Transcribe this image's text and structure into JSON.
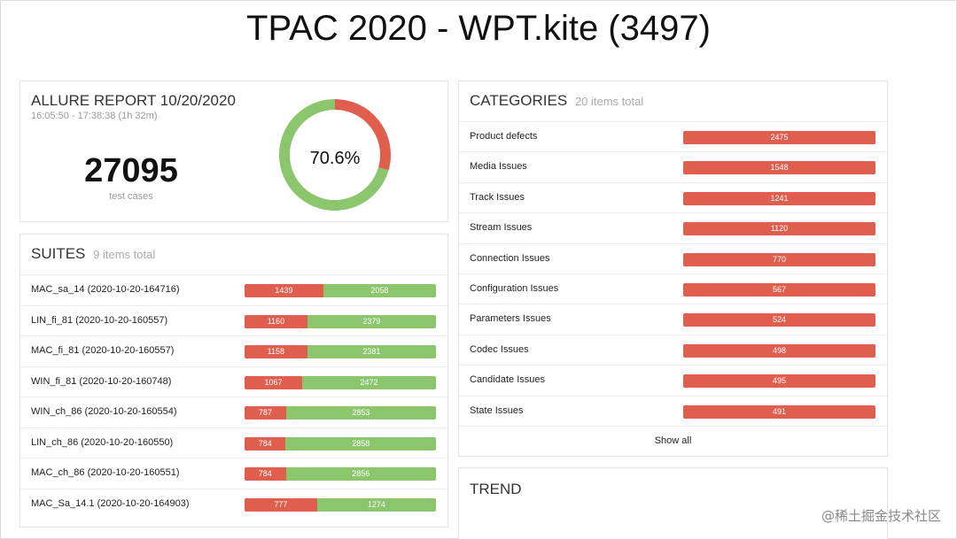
{
  "slide": {
    "title": "TPAC 2020 - WPT.kite (3497)"
  },
  "report": {
    "title": "ALLURE REPORT 10/20/2020",
    "time_range": "16:05:50 - 17:38:38 (1h 32m)",
    "total": "27095",
    "total_label": "test cases",
    "pass_rate_label": "70.6%",
    "pass_rate": 0.706,
    "colors": {
      "pass": "#8bc56c",
      "fail": "#e05e4d"
    }
  },
  "suites": {
    "title": "SUITES",
    "count_label": "9 items total",
    "items": [
      {
        "name": "MAC_sa_14 (2020-10-20-164716)",
        "failed": 1439,
        "passed": 2058,
        "failed_label": "1439",
        "passed_label": "2058"
      },
      {
        "name": "LIN_fi_81 (2020-10-20-160557)",
        "failed": 1160,
        "passed": 2379,
        "failed_label": "1160",
        "passed_label": "2379"
      },
      {
        "name": "MAC_fi_81 (2020-10-20-160557)",
        "failed": 1158,
        "passed": 2381,
        "failed_label": "1158",
        "passed_label": "2381"
      },
      {
        "name": "WIN_fi_81 (2020-10-20-160748)",
        "failed": 1067,
        "passed": 2472,
        "failed_label": "1067",
        "passed_label": "2472"
      },
      {
        "name": "WIN_ch_86 (2020-10-20-160554)",
        "failed": 787,
        "passed": 2853,
        "failed_label": "787",
        "passed_label": "2853"
      },
      {
        "name": "LIN_ch_86 (2020-10-20-160550)",
        "failed": 784,
        "passed": 2858,
        "failed_label": "784",
        "passed_label": "2858"
      },
      {
        "name": "MAC_ch_86 (2020-10-20-160551)",
        "failed": 784,
        "passed": 2856,
        "failed_label": "784",
        "passed_label": "2856"
      },
      {
        "name": "MAC_Sa_14.1 (2020-10-20-164903)",
        "failed": 777,
        "passed": 1274,
        "failed_label": "777",
        "passed_label": "1274"
      }
    ]
  },
  "categories": {
    "title": "CATEGORIES",
    "count_label": "20 items total",
    "items": [
      {
        "name": "Product defects",
        "value": "2475"
      },
      {
        "name": "Media Issues",
        "value": "1548"
      },
      {
        "name": "Track Issues",
        "value": "1241"
      },
      {
        "name": "Stream Issues",
        "value": "1120"
      },
      {
        "name": "Connection Issues",
        "value": "770"
      },
      {
        "name": "Configuration Issues",
        "value": "567"
      },
      {
        "name": "Parameters Issues",
        "value": "524"
      },
      {
        "name": "Codec Issues",
        "value": "498"
      },
      {
        "name": "Candidate Issues",
        "value": "495"
      },
      {
        "name": "State Issues",
        "value": "491"
      }
    ],
    "show_all_label": "Show all"
  },
  "trend": {
    "title": "TREND"
  },
  "watermark": "@稀土掘金技术社区"
}
